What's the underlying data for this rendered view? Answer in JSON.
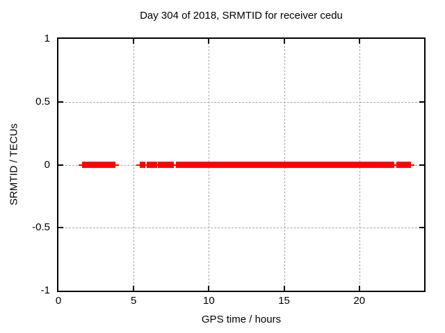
{
  "figure": {
    "title": "Day 304 of 2018, SRMTID for receiver cedu",
    "xlabel": "GPS time / hours",
    "ylabel": "SRMTID / TECUs"
  },
  "chart_data": {
    "type": "scatter",
    "title": "Day 304 of 2018, SRMTID for receiver cedu",
    "xlabel": "GPS time / hours",
    "ylabel": "SRMTID / TECUs",
    "xlim": [
      0,
      24.31
    ],
    "ylim": [
      -1,
      1
    ],
    "x_ticks": [
      0,
      5,
      10,
      15,
      20
    ],
    "y_ticks": [
      1,
      0.5,
      0,
      -0.5,
      -1
    ],
    "grid": true,
    "legend": "none",
    "marker": "plus",
    "series_color": "#ff0000",
    "grid_color": "#a8a8a8",
    "series": [
      {
        "name": "SRMTID",
        "y_value": 0,
        "segments_hours": [
          [
            1.59,
            3.77
          ],
          [
            5.43,
            5.78
          ],
          [
            5.89,
            6.54
          ],
          [
            6.63,
            7.65
          ],
          [
            7.79,
            22.34
          ],
          [
            22.46,
            23.41
          ]
        ]
      }
    ]
  }
}
